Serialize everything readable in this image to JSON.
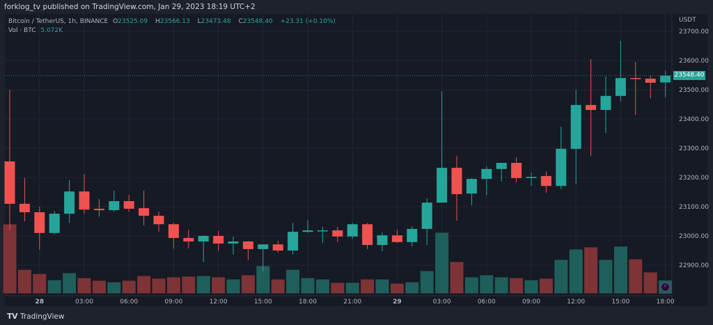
{
  "header": {
    "published": "forklog_tv published on TradingView.com, Jan 29, 2023 18:19 UTC+2"
  },
  "legend": {
    "symbol": "Bitcoin / TetherUS, 1h, BINANCE",
    "o_label": "O",
    "o": "23525.09",
    "h_label": "H",
    "h": "23566.13",
    "l_label": "L",
    "l": "23473.48",
    "c_label": "C",
    "c": "23548.40",
    "change": "+23.31 (+0.10%)",
    "vol_label": "Vol · BTC",
    "vol": "5.072K"
  },
  "footer": {
    "brand": "TradingView"
  },
  "colors": {
    "up": "#26a69a",
    "down": "#ef5350",
    "up_volume": "#1f5f5b",
    "down_volume": "#7e3336",
    "background": "#161a25",
    "grid": "#232733"
  },
  "icons": [
    "tradingview-logo-icon",
    "lightning-icon"
  ],
  "chart_data": {
    "type": "candlestick",
    "title": "Bitcoin / TetherUS, 1h, BINANCE",
    "price_unit": "USDT",
    "last_price": "23548.40",
    "ylim": [
      22820,
      23720
    ],
    "y_ticks": [
      "23700.00",
      "23600.00",
      "23500.00",
      "23400.00",
      "23300.00",
      "23200.00",
      "23100.00",
      "23000.00",
      "22900.00"
    ],
    "x_ticks": [
      {
        "index": 2,
        "label": "28"
      },
      {
        "index": 5,
        "label": "03:00"
      },
      {
        "index": 8,
        "label": "06:00"
      },
      {
        "index": 11,
        "label": "09:00"
      },
      {
        "index": 14,
        "label": "12:00"
      },
      {
        "index": 17,
        "label": "15:00"
      },
      {
        "index": 20,
        "label": "18:00"
      },
      {
        "index": 23,
        "label": "21:00"
      },
      {
        "index": 26,
        "label": "29"
      },
      {
        "index": 29,
        "label": "03:00"
      },
      {
        "index": 32,
        "label": "06:00"
      },
      {
        "index": 35,
        "label": "09:00"
      },
      {
        "index": 38,
        "label": "12:00"
      },
      {
        "index": 41,
        "label": "15:00"
      },
      {
        "index": 44,
        "label": "18:00"
      }
    ],
    "grid": true,
    "ohlc": [
      [
        23255,
        23500,
        23020,
        23110
      ],
      [
        23110,
        23198,
        23050,
        23081
      ],
      [
        23081,
        23100,
        22952,
        23010
      ],
      [
        23010,
        23086,
        23005,
        23076
      ],
      [
        23076,
        23190,
        23045,
        23152
      ],
      [
        23152,
        23212,
        23076,
        23090
      ],
      [
        23093,
        23126,
        23066,
        23088
      ],
      [
        23088,
        23155,
        23083,
        23119
      ],
      [
        23119,
        23140,
        23083,
        23093
      ],
      [
        23095,
        23155,
        23036,
        23069
      ],
      [
        23069,
        23083,
        23014,
        23040
      ],
      [
        23040,
        23045,
        22957,
        22993
      ],
      [
        22993,
        23021,
        22957,
        22981
      ],
      [
        22981,
        23002,
        22910,
        23000
      ],
      [
        23000,
        23017,
        22950,
        22974
      ],
      [
        22974,
        22998,
        22936,
        22981
      ],
      [
        22981,
        22983,
        22917,
        22955
      ],
      [
        22955,
        22967,
        22879,
        22971
      ],
      [
        22971,
        22983,
        22943,
        22950
      ],
      [
        22950,
        23045,
        22936,
        23014
      ],
      [
        23014,
        23055,
        23010,
        23019
      ],
      [
        23019,
        23031,
        22976,
        23019
      ],
      [
        23019,
        23031,
        22979,
        22998
      ],
      [
        22998,
        23045,
        22990,
        23040
      ],
      [
        23040,
        23045,
        22955,
        22969
      ],
      [
        22969,
        23012,
        22948,
        23002
      ],
      [
        23002,
        23021,
        22976,
        22979
      ],
      [
        22979,
        23033,
        22964,
        23024
      ],
      [
        23024,
        23129,
        22969,
        23114
      ],
      [
        23114,
        23495,
        23114,
        23233
      ],
      [
        23233,
        23274,
        23052,
        23143
      ],
      [
        23145,
        23198,
        23105,
        23195
      ],
      [
        23195,
        23238,
        23140,
        23229
      ],
      [
        23229,
        23250,
        23186,
        23250
      ],
      [
        23250,
        23269,
        23183,
        23198
      ],
      [
        23198,
        23217,
        23171,
        23202
      ],
      [
        23205,
        23221,
        23148,
        23171
      ],
      [
        23171,
        23374,
        23160,
        23298
      ],
      [
        23298,
        23500,
        23176,
        23448
      ],
      [
        23448,
        23605,
        23274,
        23431
      ],
      [
        23431,
        23545,
        23352,
        23479
      ],
      [
        23479,
        23667,
        23460,
        23540
      ],
      [
        23540,
        23595,
        23414,
        23538
      ],
      [
        23538,
        23548,
        23471,
        23524
      ],
      [
        23525.09,
        23566.13,
        23473.48,
        23548.4
      ]
    ],
    "volume_unit": "K BTC",
    "volume": [
      26.7,
      9.3,
      7.7,
      5.3,
      8.0,
      6.1,
      5.1,
      4.5,
      5.1,
      6.9,
      5.9,
      6.4,
      6.7,
      6.9,
      6.4,
      5.6,
      7.2,
      10.7,
      5.6,
      9.3,
      6.1,
      5.6,
      4.3,
      4.3,
      5.6,
      5.6,
      4.0,
      4.5,
      8.8,
      23.5,
      12.3,
      6.4,
      7.2,
      6.4,
      6.1,
      5.3,
      5.9,
      13.1,
      17.1,
      17.9,
      13.1,
      18.2,
      13.3,
      8.3,
      5.072
    ]
  }
}
